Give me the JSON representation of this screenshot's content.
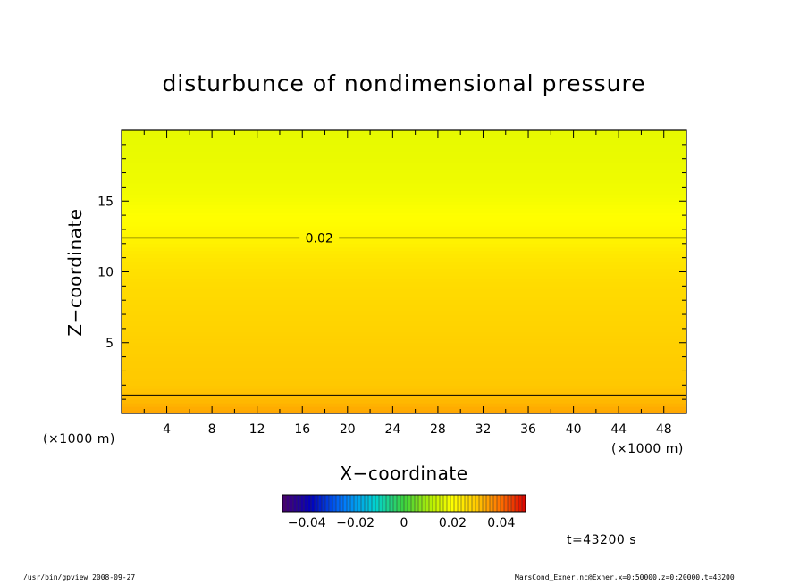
{
  "chart_data": {
    "type": "heatmap",
    "title": "disturbunce of nondimensional pressure",
    "xlabel": "X−coordinate",
    "ylabel": "Z−coordinate",
    "x_unit": "(×1000 m)",
    "y_unit": "(×1000 m)",
    "xlim": [
      0,
      50
    ],
    "ylim": [
      0,
      20
    ],
    "x_ticks": [
      4,
      8,
      12,
      16,
      20,
      24,
      28,
      32,
      36,
      40,
      44,
      48
    ],
    "y_ticks": [
      5,
      10,
      15
    ],
    "contours": [
      {
        "level": 0.02,
        "label": "0.02",
        "z": 12.4
      },
      {
        "level": 0.03,
        "label": "",
        "z": 1.3
      }
    ],
    "field_profile": {
      "z": [
        0,
        1,
        2,
        3,
        4,
        5,
        6,
        7,
        8,
        9,
        10,
        11,
        12,
        13,
        14,
        15,
        16,
        17,
        18,
        19,
        20
      ],
      "value": [
        0.034,
        0.0315,
        0.03,
        0.0295,
        0.029,
        0.0285,
        0.028,
        0.0275,
        0.027,
        0.0265,
        0.0255,
        0.0245,
        0.0225,
        0.021,
        0.02,
        0.019,
        0.0182,
        0.0178,
        0.0175,
        0.0172,
        0.017
      ]
    },
    "colorbar": {
      "range": [
        -0.05,
        0.05
      ],
      "tick_values": [
        -0.04,
        -0.02,
        0,
        0.02,
        0.04
      ],
      "tick_labels": [
        "−0.04",
        "−0.02",
        "0",
        "0.02",
        "0.04"
      ]
    },
    "time_label": "t=43200 s"
  },
  "footer": {
    "left": "/usr/bin/gpview   2008-09-27",
    "right": "MarsCond_Exner.nc@Exner,x=0:50000,z=0:20000,t=43200"
  }
}
